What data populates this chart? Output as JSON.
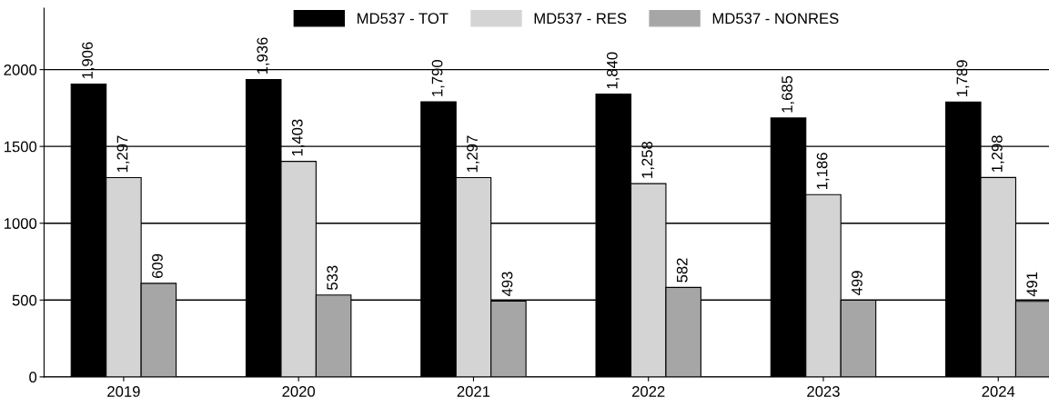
{
  "chart_data": {
    "type": "bar",
    "categories": [
      "2019",
      "2020",
      "2021",
      "2022",
      "2023",
      "2024"
    ],
    "series": [
      {
        "name": "MD537 - TOT",
        "color": "#000000",
        "values": [
          1906,
          1936,
          1790,
          1840,
          1685,
          1789
        ],
        "value_labels": [
          "1,906",
          "1,936",
          "1,790",
          "1,840",
          "1,685",
          "1,789"
        ]
      },
      {
        "name": "MD537 - RES",
        "color": "#d4d4d4",
        "values": [
          1297,
          1403,
          1297,
          1258,
          1186,
          1298
        ],
        "value_labels": [
          "1,297",
          "1,403",
          "1,297",
          "1,258",
          "1,186",
          "1,298"
        ]
      },
      {
        "name": "MD537 - NONRES",
        "color": "#a6a6a6",
        "values": [
          609,
          533,
          493,
          582,
          499,
          491
        ],
        "value_labels": [
          "609",
          "533",
          "493",
          "582",
          "499",
          "491"
        ]
      }
    ],
    "ylim": [
      0,
      2400
    ],
    "yticks": [
      0,
      500,
      1000,
      1500,
      2000
    ],
    "grid": "y",
    "legend": "top"
  }
}
